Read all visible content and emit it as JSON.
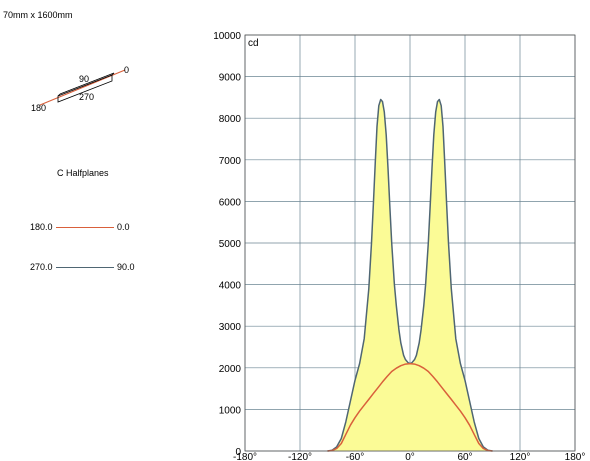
{
  "luminaire": {
    "dimensions": "70mm x 1600mm",
    "angles": {
      "c0": "0",
      "c90": "90",
      "c180": "180",
      "c270": "270"
    }
  },
  "legend": {
    "title": "C Halfplanes",
    "entries": [
      {
        "left": "180.0",
        "right": "0.0",
        "color": "#d9603b"
      },
      {
        "left": "270.0",
        "right": "90.0",
        "color": "#4f6673"
      }
    ]
  },
  "chart_data": {
    "type": "line",
    "unit_label": "cd",
    "xlim": [
      -180,
      180
    ],
    "ylim": [
      0,
      10000
    ],
    "x_ticks": [
      -180,
      -120,
      -60,
      0,
      60,
      120,
      180
    ],
    "x_tick_labels": [
      "-180°",
      "-120°",
      "-60°",
      "0°",
      "60°",
      "120°",
      "180°"
    ],
    "y_ticks": [
      0,
      1000,
      2000,
      3000,
      4000,
      5000,
      6000,
      7000,
      8000,
      9000,
      10000
    ],
    "y_tick_labels": [
      "0",
      "1000",
      "2000",
      "3000",
      "4000",
      "5000",
      "6000",
      "7000",
      "8000",
      "9000",
      "10000"
    ],
    "grid": true,
    "series": [
      {
        "legend": "C180.0 – C0.0",
        "color": "#d9603b",
        "fill": false,
        "x": [
          -90,
          -85,
          -80,
          -75,
          -70,
          -65,
          -60,
          -55,
          -50,
          -45,
          -40,
          -35,
          -30,
          -25,
          -20,
          -15,
          -10,
          -5,
          0,
          5,
          10,
          15,
          20,
          25,
          30,
          35,
          40,
          45,
          50,
          55,
          60,
          65,
          70,
          75,
          80,
          85,
          90
        ],
        "y": [
          0,
          10,
          60,
          180,
          400,
          620,
          800,
          960,
          1100,
          1240,
          1380,
          1520,
          1660,
          1790,
          1910,
          1990,
          2050,
          2090,
          2100,
          2090,
          2050,
          1990,
          1910,
          1790,
          1660,
          1520,
          1380,
          1240,
          1100,
          960,
          800,
          620,
          400,
          180,
          60,
          10,
          0
        ]
      },
      {
        "legend": "C270.0 – C90.0",
        "color": "#4f6673",
        "fill": true,
        "fill_color": "#fbfb96",
        "x": [
          -90,
          -85,
          -80,
          -75,
          -70,
          -65,
          -60,
          -55,
          -50,
          -45,
          -42,
          -40,
          -38,
          -36,
          -34,
          -32,
          -30,
          -28,
          -26,
          -24,
          -22,
          -20,
          -17,
          -15,
          -12,
          -10,
          -7,
          -5,
          -2,
          0,
          2,
          5,
          7,
          10,
          12,
          15,
          17,
          20,
          22,
          24,
          26,
          28,
          30,
          32,
          34,
          36,
          38,
          40,
          42,
          45,
          50,
          55,
          60,
          65,
          70,
          75,
          80,
          85,
          90
        ],
        "y": [
          0,
          20,
          100,
          300,
          700,
          1200,
          1700,
          2100,
          2700,
          3900,
          5000,
          5900,
          6900,
          7800,
          8300,
          8450,
          8400,
          8150,
          7600,
          6800,
          5900,
          5000,
          4000,
          3500,
          2900,
          2600,
          2300,
          2200,
          2120,
          2100,
          2120,
          2200,
          2300,
          2600,
          2900,
          3500,
          4000,
          5000,
          5900,
          6800,
          7600,
          8150,
          8400,
          8450,
          8300,
          7800,
          6900,
          5900,
          5000,
          3900,
          2700,
          2100,
          1700,
          1200,
          700,
          300,
          100,
          20,
          0
        ]
      }
    ]
  }
}
